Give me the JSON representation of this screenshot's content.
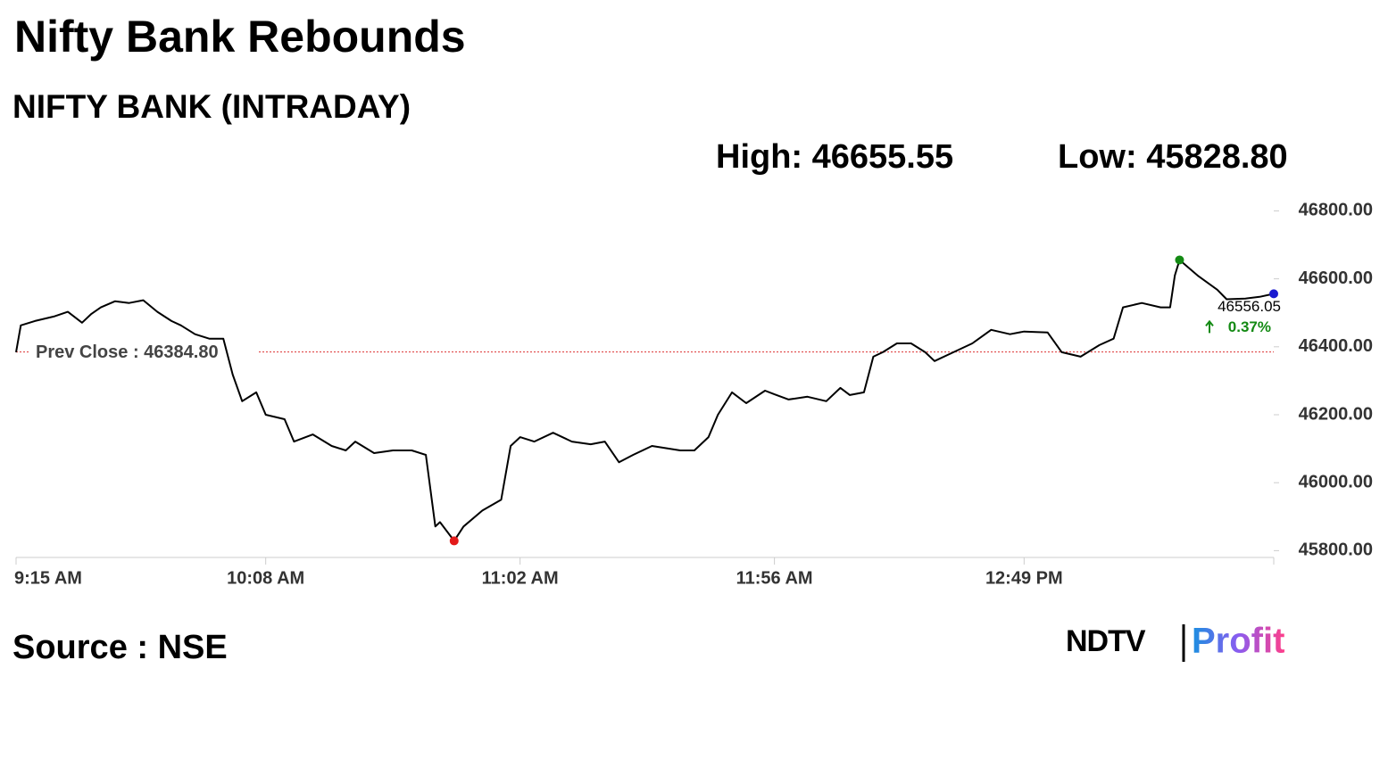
{
  "chart_data": {
    "type": "line",
    "title": "Nifty Bank Rebounds",
    "subtitle": "NIFTY BANK (INTRADAY)",
    "high": {
      "value": 46655.55,
      "label": "High: 46655.55"
    },
    "low": {
      "value": 45828.8,
      "label": "Low: 45828.80"
    },
    "prev_close": {
      "value": 46384.8,
      "label": "Prev Close : 46384.80"
    },
    "last_change": {
      "value": 0.37,
      "label": "0.37%"
    },
    "color": "#000000",
    "x": [
      "09:15",
      "09:16",
      "09:19",
      "09:23",
      "09:26",
      "09:29",
      "09:31",
      "09:33",
      "09:36",
      "09:39",
      "09:42",
      "09:45",
      "09:48",
      "09:50",
      "09:53",
      "09:56",
      "09:59",
      "10:01",
      "10:03",
      "10:06",
      "10:08",
      "10:12",
      "10:14",
      "10:18",
      "10:22",
      "10:25",
      "10:27",
      "10:31",
      "10:35",
      "10:39",
      "10:42",
      "10:44",
      "10:45",
      "10:48",
      "10:50",
      "10:54",
      "10:58",
      "11:00",
      "11:02",
      "11:05",
      "11:09",
      "11:13",
      "11:17",
      "11:20",
      "11:23",
      "11:26",
      "11:30",
      "11:36",
      "11:39",
      "11:42",
      "11:44",
      "11:47",
      "11:50",
      "11:54",
      "11:56",
      "11:59",
      "12:03",
      "12:07",
      "12:10",
      "12:12",
      "12:15",
      "12:17",
      "12:19",
      "12:22",
      "12:25",
      "12:28",
      "12:30",
      "12:34",
      "12:38",
      "12:42",
      "12:46",
      "12:49",
      "12:54",
      "12:57",
      "13:01",
      "13:05",
      "13:08",
      "13:10",
      "13:14",
      "13:18",
      "13:20",
      "13:21",
      "13:22",
      "13:26",
      "13:30",
      "13:32",
      "13:36",
      "13:39",
      "13:42"
    ],
    "values": [
      46384,
      46463,
      46476,
      46489,
      46503,
      46471,
      46497,
      46516,
      46534,
      46529,
      46537,
      46503,
      46476,
      46463,
      46437,
      46424,
      46424,
      46318,
      46240,
      46266,
      46200,
      46187,
      46121,
      46142,
      46108,
      46095,
      46121,
      46087,
      46095,
      46095,
      46082,
      45871,
      45884,
      45828.8,
      45871,
      45918,
      45950,
      46108,
      46134,
      46121,
      46147,
      46121,
      46113,
      46121,
      46060,
      46082,
      46108,
      46095,
      46095,
      46134,
      46200,
      46266,
      46234,
      46271,
      46260,
      46245,
      46253,
      46240,
      46279,
      46258,
      46266,
      46371,
      46384,
      46410,
      46410,
      46384,
      46358,
      46384,
      46410,
      46450,
      46437,
      46445,
      46442,
      46384,
      46371,
      46405,
      46424,
      46516,
      46529,
      46516,
      46516,
      46610,
      46655.55,
      46608,
      46568,
      46540,
      46542,
      46547,
      46556.05
    ],
    "xlim": [
      "09:15",
      "13:42"
    ],
    "xticks": [
      {
        "value": "09:15",
        "label": "9:15 AM"
      },
      {
        "value": "10:08",
        "label": "10:08 AM"
      },
      {
        "value": "11:02",
        "label": "11:02 AM"
      },
      {
        "value": "11:56",
        "label": "11:56 AM"
      },
      {
        "value": "12:49",
        "label": "12:49 PM"
      }
    ],
    "ylim": [
      45780,
      46830
    ],
    "yticks": [
      {
        "value": 45800,
        "label": "45800.00"
      },
      {
        "value": 46000,
        "label": "46000.00"
      },
      {
        "value": 46200,
        "label": "46200.00"
      },
      {
        "value": 46400,
        "label": "46400.00"
      },
      {
        "value": 46600,
        "label": "46600.00"
      },
      {
        "value": 46800,
        "label": "46800.00"
      }
    ],
    "source": "Source : NSE",
    "logo": {
      "left": "NDTV",
      "right": "Profit"
    }
  }
}
